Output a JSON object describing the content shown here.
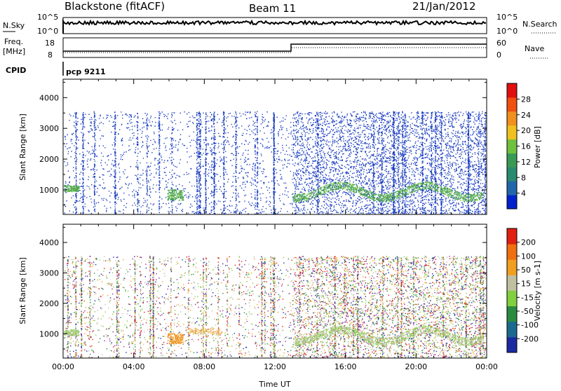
{
  "header": {
    "title": "Blackstone (fitACF)",
    "beam": "Beam 11",
    "date": "21/Jan/2012"
  },
  "top_panels": {
    "nsky_label": "N.Sky",
    "nsky_ticks": [
      "10^5",
      "10^0"
    ],
    "nsearch_label": "N.Search",
    "nsearch_ticks": [
      "10^5",
      "10^0"
    ],
    "freq_label": "Freq.",
    "freq_unit": "[MHz]",
    "freq_ticks": [
      "18",
      "8"
    ],
    "nave_label": "Nave",
    "nave_ticks": [
      "60",
      "0"
    ],
    "cpid_label": "CPID",
    "cpid_value": "pcp 9211"
  },
  "chart_data": [
    {
      "type": "heatmap",
      "name": "power",
      "ylabel": "Slant Range [km]",
      "yticks": [
        1000,
        2000,
        3000,
        4000
      ],
      "ylim": [
        200,
        4600
      ],
      "xlim": [
        0,
        24
      ],
      "xticks": [
        "00:00",
        "04:00",
        "08:00",
        "12:00",
        "16:00",
        "20:00",
        "00:00"
      ],
      "colorbar": {
        "label": "Power [dB]",
        "ticks": [
          "28",
          "24",
          "20",
          "16",
          "12",
          "8",
          "4"
        ],
        "colors": [
          "#0022cc",
          "#2266aa",
          "#2a8a70",
          "#3a9a55",
          "#70c040",
          "#f0c020",
          "#f09020",
          "#f05010",
          "#e01010"
        ]
      }
    },
    {
      "type": "heatmap",
      "name": "velocity",
      "ylabel": "Slant Range [km]",
      "yticks": [
        1000,
        2000,
        3000,
        4000
      ],
      "ylim": [
        200,
        4600
      ],
      "xlim": [
        0,
        24
      ],
      "xticks": [
        "00:00",
        "04:00",
        "08:00",
        "12:00",
        "16:00",
        "20:00",
        "00:00"
      ],
      "xlabel": "Time UT",
      "colorbar": {
        "label": "Velocity [m s-1]",
        "ticks": [
          "200",
          "100",
          "50",
          "15",
          "-15",
          "-50",
          "-100",
          "-200"
        ],
        "colors": [
          "#1a2aa0",
          "#1a6a90",
          "#2a8a40",
          "#80d040",
          "#c0c0a0",
          "#f0a020",
          "#f07010",
          "#e02010"
        ]
      }
    }
  ]
}
